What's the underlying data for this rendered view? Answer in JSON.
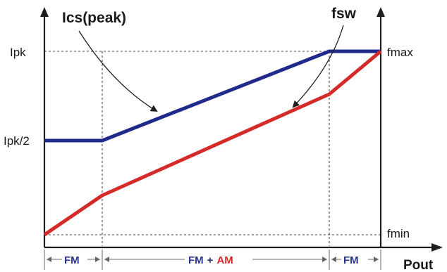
{
  "curves": {
    "ics_label": "Ics(peak)",
    "fsw_label": "fsw"
  },
  "y_left_labels": {
    "top": "Ipk",
    "mid": "Ipk/2"
  },
  "y_right_labels": {
    "top": "fmax",
    "bottom": "fmin"
  },
  "x_axis_label": "Pout",
  "bands": {
    "left": "FM",
    "middle_prefix": "FM",
    "middle_plus": "+",
    "middle_suffix": "AM",
    "right": "FM"
  },
  "colors": {
    "ics_curve": "#1f2a8a",
    "fsw_curve": "#d42a2a",
    "axis": "#1e1e1e",
    "band_fm": "#2a3590",
    "band_am": "#d42a2a"
  }
}
